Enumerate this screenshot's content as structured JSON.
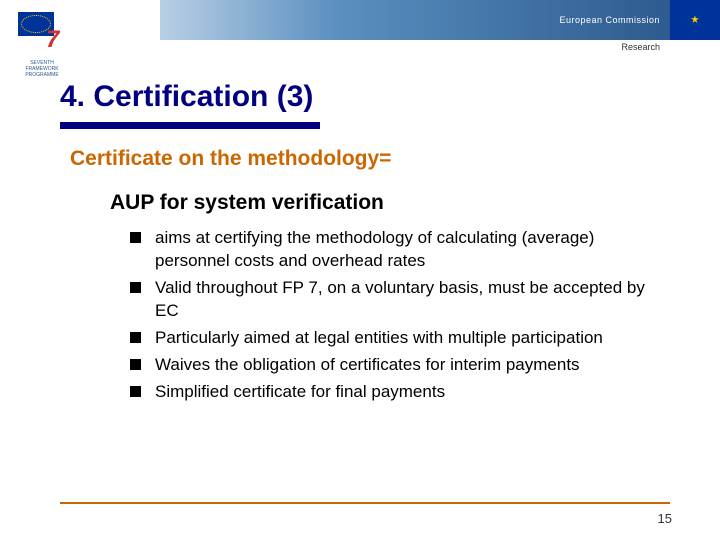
{
  "header": {
    "banner_text": "European Commission",
    "research_label": "Research",
    "fp7_caption": "SEVENTH FRAMEWORK PROGRAMME"
  },
  "title": "4. Certification (3)",
  "subtitle": "Certificate on the methodology=",
  "aup_title": "AUP for system verification",
  "bullets": [
    "aims at certifying the methodology of calculating (average) personnel costs and overhead rates",
    "Valid throughout FP 7, on a voluntary basis, must be accepted by EC",
    "Particularly aimed at legal entities with multiple participation",
    "Waives the obligation of certificates for interim payments",
    "Simplified certificate for final payments"
  ],
  "page_number": "15",
  "colors": {
    "title_color": "#000080",
    "accent_color": "#cc6600",
    "banner_start": "#b8cfe5",
    "banner_end": "#2d5a8f",
    "eu_blue": "#003399",
    "eu_gold": "#ffcc00"
  }
}
